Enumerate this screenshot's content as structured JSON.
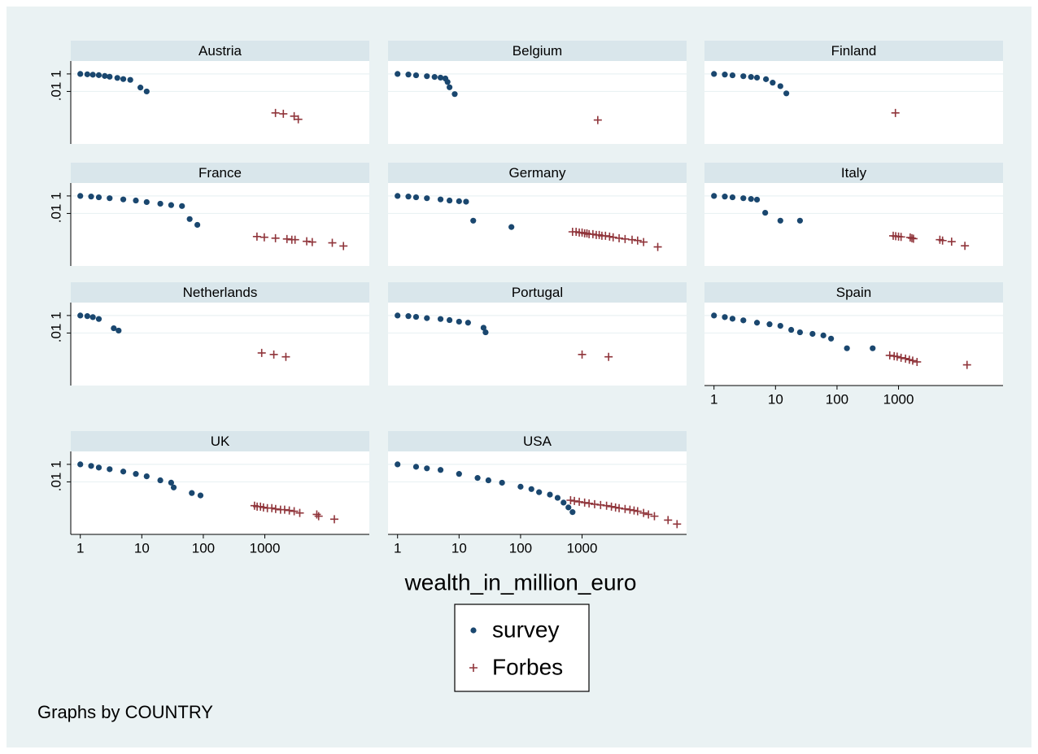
{
  "chart_data": {
    "type": "scatter",
    "xscale": "log",
    "yscale": "log",
    "xlabel": "wealth_in_million_euro",
    "note": "Graphs by COUNTRY",
    "xlim": [
      0.7,
      50000
    ],
    "ylim": [
      1e-08,
      30
    ],
    "xticks": [
      1,
      10,
      100,
      1000
    ],
    "yticks": [
      {
        "value": 1,
        "label": "1"
      },
      {
        "value": 0.01,
        "label": ".01"
      }
    ],
    "grid": true,
    "series": [
      {
        "name": "survey",
        "color": "#1a476f",
        "marker": "circle"
      },
      {
        "name": "Forbes",
        "color": "#90353b",
        "marker": "plus"
      }
    ],
    "panels": [
      {
        "title": "Austria",
        "series": [
          {
            "x": [
              1,
              1.3,
              1.6,
              2,
              2.5,
              3,
              4,
              5,
              6.5,
              9.5,
              12
            ],
            "values": [
              1,
              0.9,
              0.81,
              0.73,
              0.59,
              0.48,
              0.35,
              0.26,
              0.21,
              0.028,
              0.01
            ]
          },
          {
            "x": [
              1490,
              2000,
              3000,
              3500
            ],
            "values": [
              3.5e-05,
              2.8e-05,
              1.5e-05,
              6.6e-06
            ]
          }
        ]
      },
      {
        "title": "Belgium",
        "series": [
          {
            "x": [
              1,
              1.5,
              2,
              3,
              4,
              5,
              6,
              6.5,
              7,
              8.5
            ],
            "values": [
              1,
              0.85,
              0.7,
              0.55,
              0.45,
              0.38,
              0.3,
              0.12,
              0.03,
              0.005
            ]
          },
          {
            "x": [
              1800
            ],
            "values": [
              5.4e-06
            ]
          }
        ]
      },
      {
        "title": "Finland",
        "series": [
          {
            "x": [
              1,
              1.5,
              2,
              3,
              4,
              5,
              7,
              9,
              12,
              15
            ],
            "values": [
              1,
              0.85,
              0.7,
              0.55,
              0.45,
              0.38,
              0.25,
              0.1,
              0.04,
              0.006
            ]
          },
          {
            "x": [
              890
            ],
            "values": [
              3.5e-05
            ]
          }
        ]
      },
      {
        "title": "France",
        "series": [
          {
            "x": [
              1,
              1.5,
              2,
              3,
              5,
              8,
              12,
              20,
              30,
              45,
              60,
              80
            ],
            "values": [
              1,
              0.85,
              0.7,
              0.55,
              0.4,
              0.3,
              0.2,
              0.13,
              0.09,
              0.07,
              0.0023,
              0.0005
            ]
          },
          {
            "x": [
              745,
              980,
              1490,
              2290,
              2750,
              3100,
              4800,
              5900,
              12500,
              19000
            ],
            "values": [
              2.3e-05,
              1.9e-05,
              1.5e-05,
              1.2e-05,
              1e-05,
              1e-05,
              6.6e-06,
              5.4e-06,
              4.4e-06,
              1.9e-06
            ]
          }
        ]
      },
      {
        "title": "Germany",
        "series": [
          {
            "x": [
              1,
              1.5,
              2,
              3,
              5,
              7,
              10,
              13,
              17,
              71
            ],
            "values": [
              1,
              0.85,
              0.7,
              0.55,
              0.4,
              0.3,
              0.25,
              0.22,
              0.0015,
              0.00028
            ]
          },
          {
            "x": [
              700,
              800,
              900,
              1000,
              1100,
              1200,
              1300,
              1500,
              1700,
              1900,
              2100,
              2400,
              2800,
              3200,
              4000,
              5000,
              6500,
              8000,
              10000,
              17000
            ],
            "values": [
              8e-05,
              8e-05,
              6.6e-05,
              6.6e-05,
              5.3e-05,
              5.3e-05,
              4.3e-05,
              4.3e-05,
              3.5e-05,
              3.5e-05,
              2.8e-05,
              2.8e-05,
              2.3e-05,
              1.9e-05,
              1.5e-05,
              1.2e-05,
              1e-05,
              8.1e-06,
              5.4e-06,
              1.5e-06
            ]
          }
        ]
      },
      {
        "title": "Italy",
        "series": [
          {
            "x": [
              1,
              1.5,
              2,
              3,
              4,
              5,
              6.8,
              12,
              25
            ],
            "values": [
              1,
              0.85,
              0.7,
              0.55,
              0.45,
              0.38,
              0.012,
              0.0015,
              0.0015
            ]
          },
          {
            "x": [
              820,
              900,
              1000,
              1100,
              1550,
              1650,
              1750,
              4700,
              5200,
              7300,
              12000
            ],
            "values": [
              2.8e-05,
              2.5e-05,
              2.3e-05,
              2.1e-05,
              1.8e-05,
              1.5e-05,
              1.3e-05,
              1e-05,
              8e-06,
              6e-06,
              2e-06
            ]
          }
        ]
      },
      {
        "title": "Netherlands",
        "series": [
          {
            "x": [
              1,
              1.3,
              1.6,
              2,
              3.5,
              4.2
            ],
            "values": [
              1,
              0.85,
              0.65,
              0.4,
              0.035,
              0.019
            ]
          },
          {
            "x": [
              890,
              1400,
              2200
            ],
            "values": [
              5.3e-05,
              3.5e-05,
              1.9e-05
            ]
          }
        ]
      },
      {
        "title": "Portugal",
        "series": [
          {
            "x": [
              1,
              1.5,
              2,
              3,
              5,
              7,
              10,
              14,
              25,
              27
            ],
            "values": [
              1,
              0.85,
              0.7,
              0.5,
              0.4,
              0.3,
              0.2,
              0.15,
              0.04,
              0.012
            ]
          },
          {
            "x": [
              1000,
              2700
            ],
            "values": [
              3.5e-05,
              1.9e-05
            ]
          }
        ]
      },
      {
        "title": "Spain",
        "series": [
          {
            "x": [
              1,
              1.5,
              2,
              3,
              5,
              8,
              12,
              18,
              25,
              40,
              60,
              80,
              145,
              380
            ],
            "values": [
              1,
              0.66,
              0.43,
              0.28,
              0.15,
              0.1,
              0.066,
              0.023,
              0.012,
              0.008,
              0.0053,
              0.0023,
              0.00018,
              0.00018
            ]
          },
          {
            "x": [
              720,
              850,
              950,
              1100,
              1300,
              1500,
              1700,
              2000,
              13000
            ],
            "values": [
              2.8e-05,
              2.3e-05,
              2e-05,
              1.5e-05,
              1.2e-05,
              9e-06,
              7e-06,
              5e-06,
              2.3e-06
            ]
          }
        ]
      },
      {
        "title": "UK",
        "series": [
          {
            "x": [
              1,
              1.5,
              2,
              3,
              5,
              8,
              12,
              20,
              30,
              33,
              65,
              90
            ],
            "values": [
              1,
              0.66,
              0.43,
              0.28,
              0.15,
              0.081,
              0.043,
              0.015,
              0.0081,
              0.0023,
              0.00053,
              0.00028
            ]
          },
          {
            "x": [
              680,
              750,
              850,
              950,
              1100,
              1300,
              1500,
              1800,
              2100,
              2500,
              3000,
              3700,
              7000,
              7500,
              13500
            ],
            "values": [
              1.9e-05,
              1.5e-05,
              1.5e-05,
              1.2e-05,
              1e-05,
              1e-05,
              8e-06,
              6.6e-06,
              6.6e-06,
              5.4e-06,
              4.4e-06,
              2.8e-06,
              1.9e-06,
              1.2e-06,
              5.4e-07
            ]
          }
        ]
      },
      {
        "title": "USA",
        "series": [
          {
            "x": [
              1,
              2,
              3,
              5,
              10,
              20,
              30,
              50,
              100,
              150,
              200,
              300,
              400,
              500,
              600,
              700
            ],
            "values": [
              1,
              0.53,
              0.35,
              0.23,
              0.081,
              0.028,
              0.015,
              0.008,
              0.0028,
              0.0015,
              0.00066,
              0.00035,
              0.00015,
              4.3e-05,
              1.2e-05,
              3.5e-06
            ]
          },
          {
            "x": [
              650,
              750,
              900,
              1100,
              1300,
              1600,
              2000,
              2500,
              3000,
              3500,
              4000,
              5000,
              6000,
              7000,
              8000,
              10000,
              12000,
              15000,
              25000,
              35000
            ],
            "values": [
              8e-05,
              6.6e-05,
              5.3e-05,
              4.3e-05,
              3.5e-05,
              2.8e-05,
              2.3e-05,
              1.9e-05,
              1.5e-05,
              1.2e-05,
              1e-05,
              8.1e-06,
              6.6e-06,
              5.4e-06,
              4.4e-06,
              2.8e-06,
              1.9e-06,
              1.2e-06,
              4.3e-07,
              1.5e-07
            ]
          }
        ]
      }
    ]
  }
}
